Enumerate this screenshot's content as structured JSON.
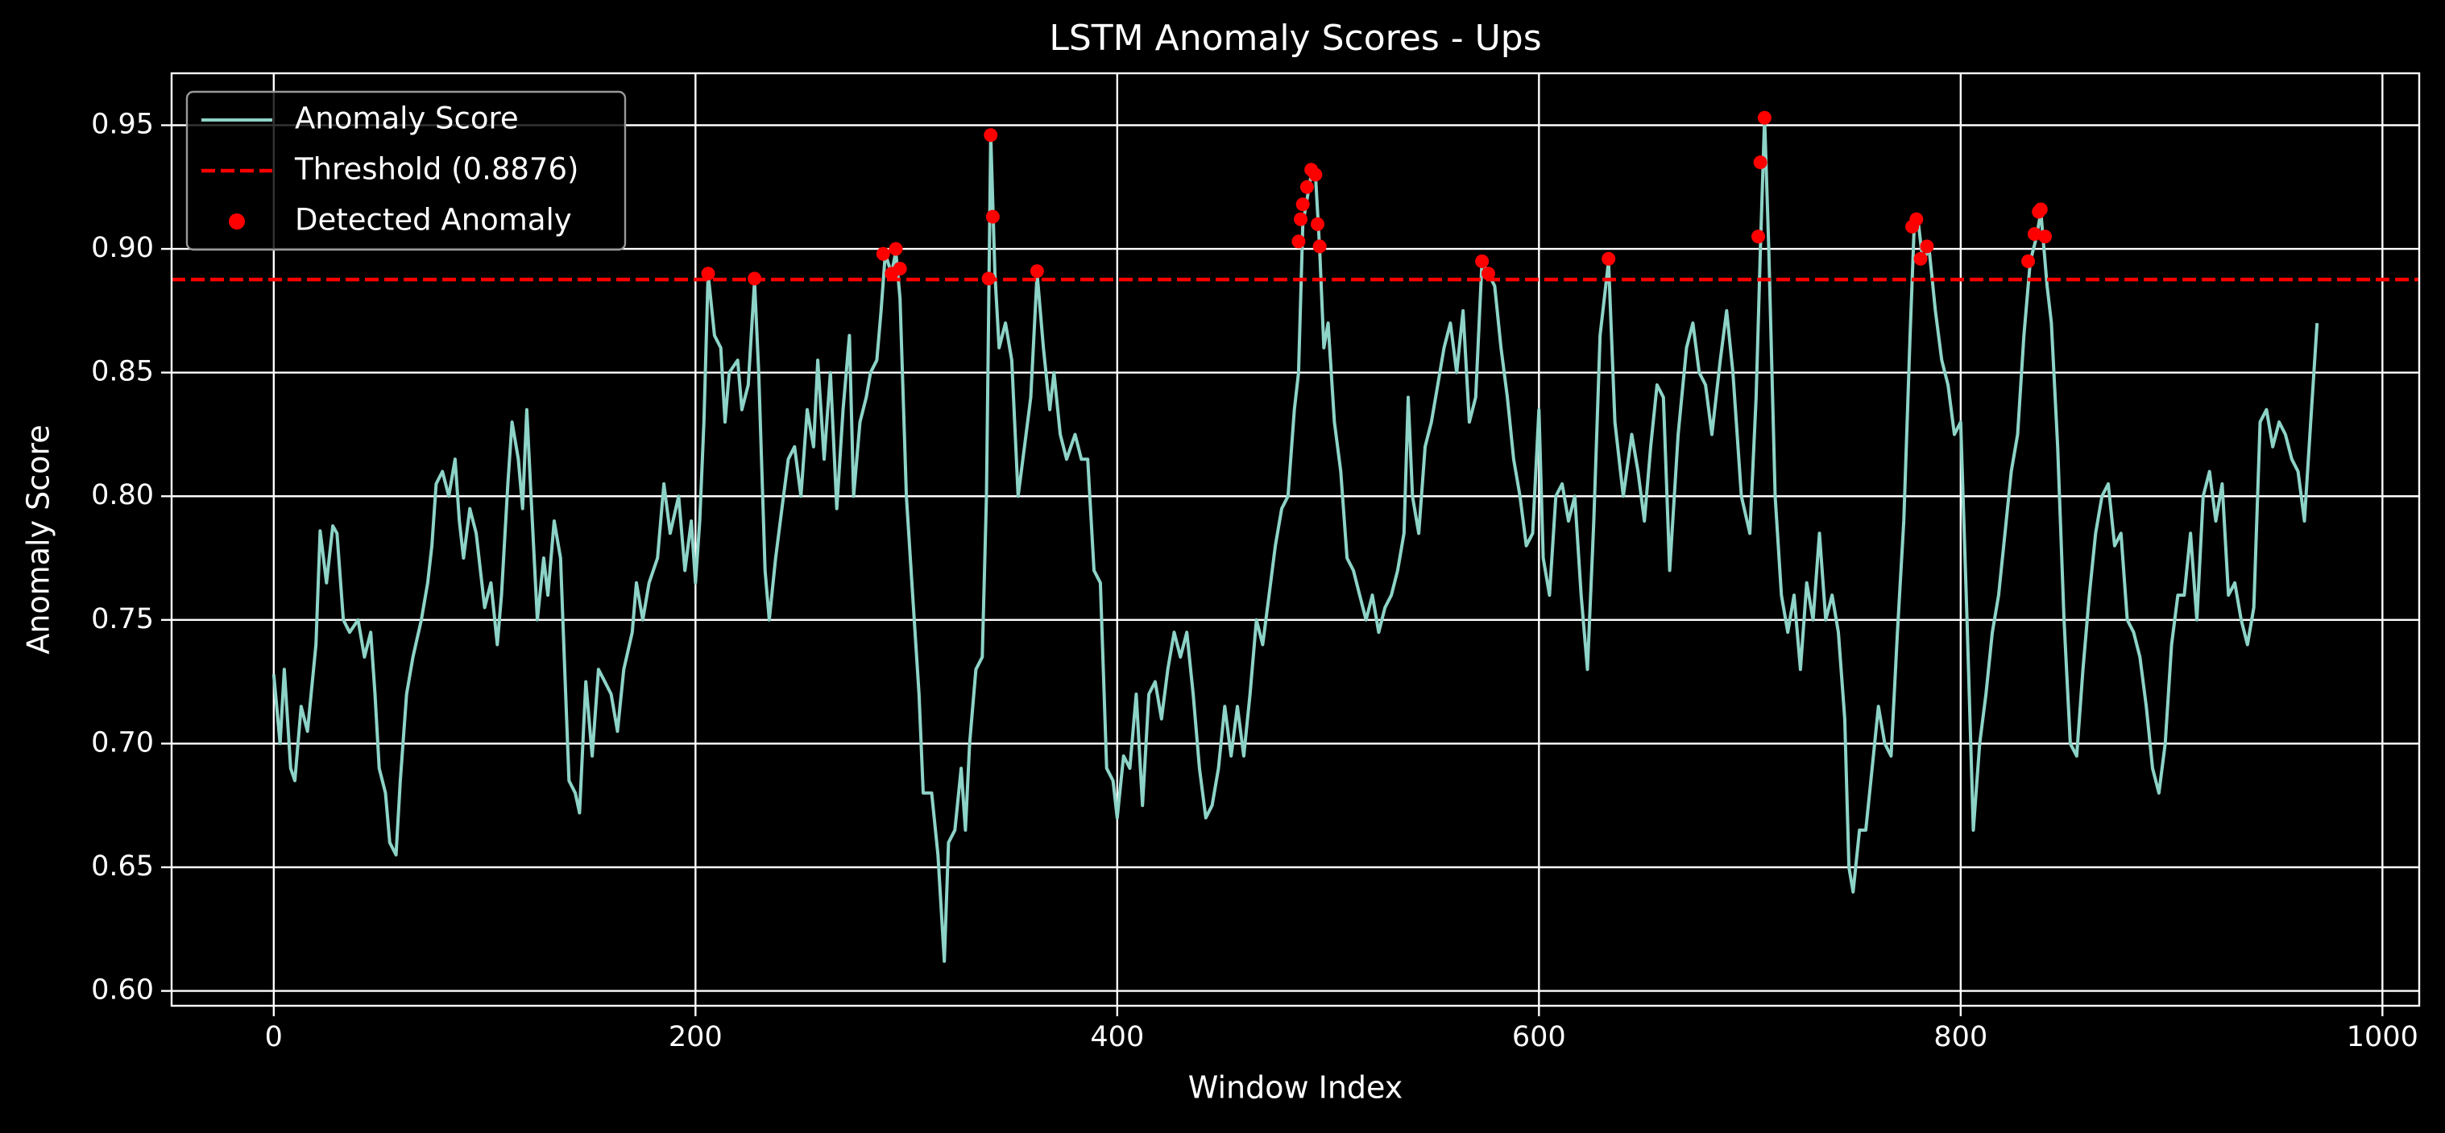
{
  "chart_data": {
    "type": "line",
    "title": "LSTM Anomaly Scores - Ups",
    "xlabel": "Window Index",
    "ylabel": "Anomaly Score",
    "xlim": [
      -48.45,
      1017.45
    ],
    "ylim": [
      0.594,
      0.971
    ],
    "xticks": [
      0,
      200,
      400,
      600,
      800,
      1000
    ],
    "yticks": [
      {
        "value": 0.6,
        "label": "0.60"
      },
      {
        "value": 0.65,
        "label": "0.65"
      },
      {
        "value": 0.7,
        "label": "0.70"
      },
      {
        "value": 0.75,
        "label": "0.75"
      },
      {
        "value": 0.8,
        "label": "0.80"
      },
      {
        "value": 0.85,
        "label": "0.85"
      },
      {
        "value": 0.9,
        "label": "0.90"
      },
      {
        "value": 0.95,
        "label": "0.95"
      }
    ],
    "grid": true,
    "legend": "upper left",
    "background": "#000000",
    "series": [
      {
        "name": "Anomaly Score",
        "kind": "line",
        "color": "#8dd3c7",
        "x": [
          0,
          3,
          5,
          8,
          10,
          13,
          16,
          20,
          22,
          25,
          28,
          30,
          33,
          36,
          40,
          43,
          46,
          48,
          50,
          53,
          55,
          58,
          60,
          63,
          66,
          70,
          73,
          75,
          77,
          80,
          83,
          86,
          88,
          90,
          93,
          96,
          100,
          103,
          106,
          108,
          111,
          113,
          116,
          118,
          120,
          122,
          125,
          128,
          130,
          133,
          136,
          138,
          140,
          143,
          145,
          148,
          151,
          154,
          157,
          160,
          163,
          166,
          170,
          172,
          175,
          178,
          182,
          185,
          188,
          192,
          195,
          198,
          200,
          202,
          204,
          206,
          209,
          212,
          214,
          216,
          220,
          222,
          225,
          228,
          230,
          233,
          235,
          238,
          241,
          244,
          247,
          250,
          253,
          256,
          258,
          261,
          264,
          267,
          270,
          273,
          275,
          278,
          281,
          283,
          286,
          288,
          290,
          293,
          295,
          297,
          300,
          303,
          306,
          308,
          312,
          315,
          318,
          320,
          323,
          326,
          328,
          330,
          333,
          336,
          338,
          340,
          342,
          344,
          347,
          350,
          353,
          356,
          359,
          362,
          365,
          368,
          370,
          373,
          376,
          380,
          383,
          386,
          389,
          392,
          395,
          398,
          400,
          403,
          406,
          409,
          412,
          415,
          418,
          421,
          424,
          427,
          430,
          433,
          436,
          439,
          442,
          445,
          448,
          451,
          454,
          457,
          460,
          463,
          466,
          469,
          472,
          475,
          478,
          481,
          484,
          486,
          488,
          490,
          492,
          494,
          496,
          498,
          500,
          503,
          506,
          509,
          512,
          515,
          518,
          521,
          524,
          527,
          530,
          533,
          536,
          538,
          540,
          543,
          546,
          549,
          552,
          555,
          558,
          561,
          564,
          567,
          570,
          573,
          576,
          579,
          582,
          585,
          588,
          591,
          594,
          597,
          600,
          602,
          605,
          608,
          611,
          614,
          617,
          620,
          623,
          626,
          629,
          633,
          636,
          640,
          644,
          647,
          650,
          653,
          656,
          659,
          662,
          666,
          670,
          673,
          676,
          679,
          682,
          686,
          689,
          692,
          696,
          700,
          703,
          705,
          707,
          709,
          712,
          715,
          718,
          721,
          724,
          727,
          730,
          733,
          736,
          739,
          742,
          745,
          747,
          749,
          752,
          755,
          758,
          761,
          764,
          767,
          770,
          773,
          776,
          778,
          780,
          782,
          785,
          788,
          791,
          794,
          797,
          800,
          803,
          806,
          809,
          812,
          815,
          818,
          821,
          824,
          827,
          830,
          833,
          836,
          838,
          841,
          843,
          846,
          849,
          852,
          855,
          858,
          861,
          864,
          867,
          870,
          873,
          876,
          879,
          882,
          885,
          888,
          891,
          894,
          897,
          900,
          903,
          906,
          909,
          912,
          915,
          918,
          921,
          924,
          927,
          930,
          933,
          936,
          939,
          942,
          945,
          948,
          951,
          954,
          957,
          960,
          963,
          966,
          969
        ],
        "values": [
          0.728,
          0.7,
          0.73,
          0.69,
          0.685,
          0.715,
          0.705,
          0.74,
          0.786,
          0.765,
          0.788,
          0.785,
          0.75,
          0.745,
          0.75,
          0.735,
          0.745,
          0.72,
          0.69,
          0.68,
          0.66,
          0.655,
          0.685,
          0.72,
          0.735,
          0.75,
          0.765,
          0.78,
          0.805,
          0.81,
          0.8,
          0.815,
          0.79,
          0.775,
          0.795,
          0.785,
          0.755,
          0.765,
          0.74,
          0.76,
          0.805,
          0.83,
          0.815,
          0.795,
          0.835,
          0.8,
          0.75,
          0.775,
          0.76,
          0.79,
          0.775,
          0.73,
          0.685,
          0.68,
          0.672,
          0.725,
          0.695,
          0.73,
          0.725,
          0.72,
          0.705,
          0.73,
          0.745,
          0.765,
          0.75,
          0.765,
          0.775,
          0.805,
          0.785,
          0.8,
          0.77,
          0.79,
          0.765,
          0.79,
          0.83,
          0.89,
          0.865,
          0.86,
          0.83,
          0.85,
          0.855,
          0.835,
          0.845,
          0.887,
          0.85,
          0.77,
          0.75,
          0.775,
          0.795,
          0.815,
          0.82,
          0.8,
          0.835,
          0.82,
          0.855,
          0.815,
          0.85,
          0.795,
          0.835,
          0.865,
          0.8,
          0.83,
          0.84,
          0.85,
          0.855,
          0.875,
          0.898,
          0.89,
          0.899,
          0.88,
          0.8,
          0.76,
          0.72,
          0.68,
          0.68,
          0.655,
          0.612,
          0.66,
          0.665,
          0.69,
          0.665,
          0.7,
          0.73,
          0.735,
          0.8,
          0.946,
          0.89,
          0.86,
          0.87,
          0.855,
          0.8,
          0.82,
          0.84,
          0.89,
          0.86,
          0.835,
          0.85,
          0.825,
          0.815,
          0.825,
          0.815,
          0.815,
          0.77,
          0.765,
          0.69,
          0.685,
          0.67,
          0.695,
          0.69,
          0.72,
          0.675,
          0.72,
          0.725,
          0.71,
          0.73,
          0.745,
          0.735,
          0.745,
          0.72,
          0.69,
          0.67,
          0.675,
          0.69,
          0.715,
          0.695,
          0.715,
          0.695,
          0.72,
          0.75,
          0.74,
          0.76,
          0.78,
          0.795,
          0.8,
          0.835,
          0.85,
          0.91,
          0.92,
          0.93,
          0.93,
          0.9,
          0.86,
          0.87,
          0.83,
          0.81,
          0.775,
          0.77,
          0.76,
          0.75,
          0.76,
          0.745,
          0.755,
          0.76,
          0.77,
          0.785,
          0.84,
          0.8,
          0.785,
          0.82,
          0.83,
          0.845,
          0.86,
          0.87,
          0.85,
          0.875,
          0.83,
          0.84,
          0.895,
          0.89,
          0.885,
          0.86,
          0.84,
          0.815,
          0.8,
          0.78,
          0.785,
          0.835,
          0.775,
          0.76,
          0.8,
          0.805,
          0.79,
          0.8,
          0.76,
          0.73,
          0.79,
          0.865,
          0.895,
          0.83,
          0.8,
          0.825,
          0.81,
          0.79,
          0.82,
          0.845,
          0.84,
          0.77,
          0.825,
          0.86,
          0.87,
          0.85,
          0.845,
          0.825,
          0.855,
          0.875,
          0.85,
          0.8,
          0.785,
          0.84,
          0.9,
          0.953,
          0.9,
          0.8,
          0.76,
          0.745,
          0.76,
          0.73,
          0.765,
          0.75,
          0.785,
          0.75,
          0.76,
          0.745,
          0.71,
          0.65,
          0.64,
          0.665,
          0.665,
          0.69,
          0.715,
          0.7,
          0.695,
          0.745,
          0.79,
          0.865,
          0.91,
          0.91,
          0.895,
          0.9,
          0.875,
          0.855,
          0.845,
          0.825,
          0.83,
          0.75,
          0.665,
          0.7,
          0.72,
          0.745,
          0.76,
          0.785,
          0.81,
          0.825,
          0.865,
          0.895,
          0.905,
          0.915,
          0.885,
          0.87,
          0.82,
          0.75,
          0.7,
          0.695,
          0.73,
          0.76,
          0.785,
          0.8,
          0.805,
          0.78,
          0.785,
          0.75,
          0.745,
          0.735,
          0.715,
          0.69,
          0.68,
          0.7,
          0.74,
          0.76,
          0.76,
          0.785,
          0.75,
          0.8,
          0.81,
          0.79,
          0.805,
          0.76,
          0.765,
          0.75,
          0.74,
          0.755,
          0.83,
          0.835,
          0.82,
          0.83,
          0.825,
          0.815,
          0.81,
          0.79,
          0.83,
          0.87
        ]
      },
      {
        "name": "Threshold (0.8876)",
        "kind": "hline",
        "color": "#ff0000",
        "value": 0.8876
      },
      {
        "name": "Detected Anomaly",
        "kind": "scatter",
        "color": "#ff0000",
        "x": [
          206,
          228,
          289,
          293,
          295,
          297,
          339,
          340,
          341,
          362,
          486,
          487,
          488,
          490,
          492,
          494,
          495,
          496,
          573,
          576,
          633,
          704,
          705,
          707,
          777,
          779,
          781,
          784,
          832,
          835,
          837,
          838,
          840
        ],
        "values": [
          0.89,
          0.888,
          0.898,
          0.89,
          0.9,
          0.892,
          0.888,
          0.946,
          0.913,
          0.891,
          0.903,
          0.912,
          0.918,
          0.925,
          0.932,
          0.93,
          0.91,
          0.901,
          0.895,
          0.89,
          0.896,
          0.905,
          0.935,
          0.953,
          0.909,
          0.912,
          0.896,
          0.901,
          0.895,
          0.906,
          0.915,
          0.916,
          0.905
        ]
      }
    ]
  }
}
